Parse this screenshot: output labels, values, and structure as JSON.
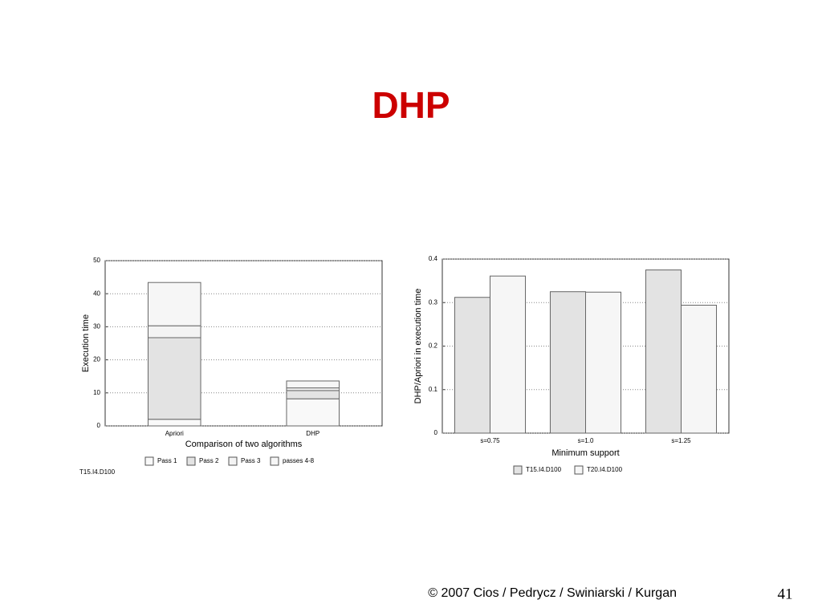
{
  "slide": {
    "title": "DHP",
    "footer": "© 2007 Cios / Pedrycz / Swiniarski / Kurgan",
    "page_number": "41"
  },
  "chart_data": [
    {
      "type": "stacked_bar",
      "xlabel": "Comparison of two algorithms",
      "ylabel": "Execution time",
      "note": "T15.I4.D100",
      "categories": [
        "Apriori",
        "DHP"
      ],
      "series": [
        {
          "name": "Pass 1",
          "color": "#f9f9f9",
          "values": [
            2,
            8.2
          ]
        },
        {
          "name": "Pass 2",
          "color": "#e3e3e3",
          "values": [
            24.7,
            2.5
          ]
        },
        {
          "name": "Pass 3",
          "color": "#f3f3f3",
          "values": [
            3.6,
            0.8
          ]
        },
        {
          "name": "passes 4-8",
          "color": "#f6f6f6",
          "values": [
            13.1,
            2.1
          ]
        }
      ],
      "ylim": [
        0,
        50
      ],
      "yticks": [
        0,
        10,
        20,
        30,
        40,
        50
      ],
      "grid": true
    },
    {
      "type": "bar",
      "xlabel": "Minimum support",
      "ylabel": "DHP/Apriori in execution time",
      "categories": [
        "s=0.75",
        "s=1.0",
        "s=1.25"
      ],
      "series": [
        {
          "name": "T15.I4.D100",
          "color": "#e3e3e3",
          "values": [
            0.312,
            0.325,
            0.375
          ]
        },
        {
          "name": "T20.I4.D100",
          "color": "#f6f6f6",
          "values": [
            0.361,
            0.324,
            0.294
          ]
        }
      ],
      "ylim": [
        0,
        0.4
      ],
      "yticks": [
        0,
        0.1,
        0.2,
        0.3,
        0.4
      ],
      "grid": true
    }
  ]
}
